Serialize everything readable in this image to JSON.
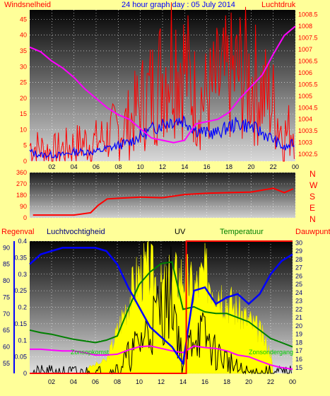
{
  "colors": {
    "background": "#ffff99",
    "wind": "#ff0000",
    "gust": "#ff0000",
    "wind_avg": "#0000ff",
    "pressure": "#ff00ff",
    "direction": "#ff0000",
    "humidity": "#0000ff",
    "temperature": "#008000",
    "uv": "#000000",
    "solar": "#ffff00",
    "rain": "#ff0000",
    "dewpoint": "#ff00ff",
    "title": "#0000ff"
  },
  "chart_data": [
    {
      "type": "line",
      "title": "24 hour graph day : 05 July 2014",
      "left_label": "Windsnelheid",
      "right_label": "Luchtdruk",
      "x_ticks": [
        "02",
        "04",
        "06",
        "08",
        "10",
        "12",
        "14",
        "16",
        "18",
        "20",
        "22",
        "00"
      ],
      "y_left_ticks": [
        "45",
        "40",
        "35",
        "30",
        "25",
        "20",
        "15",
        "10",
        "5",
        "0"
      ],
      "y_right_ticks": [
        "1008.5",
        "1008",
        "1007.5",
        "1007",
        "1006.5",
        "1006",
        "1005.5",
        "1005",
        "1004.5",
        "1004",
        "1003.5",
        "1003",
        "1002.5"
      ],
      "ylim_left": [
        0,
        48
      ],
      "ylim_right": [
        1002.2,
        1008.7
      ],
      "x_hours": [
        0,
        1,
        2,
        3,
        4,
        5,
        6,
        7,
        8,
        9,
        10,
        11,
        12,
        13,
        14,
        15,
        16,
        17,
        18,
        19,
        20,
        21,
        22,
        23,
        24
      ],
      "series": [
        {
          "key": "gust",
          "values": [
            5,
            4,
            3,
            4,
            5,
            6,
            6,
            8,
            10,
            12,
            18,
            22,
            28,
            36,
            30,
            20,
            20,
            24,
            26,
            28,
            26,
            22,
            18,
            8,
            12
          ]
        },
        {
          "key": "wind_avg",
          "values": [
            3,
            2,
            2,
            2,
            3,
            3,
            3,
            4,
            5,
            6,
            8,
            10,
            12,
            13,
            13,
            10,
            9,
            9,
            11,
            12,
            11,
            9,
            7,
            4,
            6
          ]
        },
        {
          "key": "pressure",
          "values": [
            1007.1,
            1006.9,
            1006.5,
            1006.2,
            1005.8,
            1005.3,
            1004.9,
            1004.5,
            1004.2,
            1004.0,
            1003.6,
            1003.2,
            1003.1,
            1003.0,
            1003.1,
            1003.8,
            1003.9,
            1004.0,
            1004.3,
            1004.9,
            1005.4,
            1005.9,
            1006.8,
            1007.6,
            1008.0
          ]
        }
      ]
    },
    {
      "type": "line",
      "y_ticks": [
        "360",
        "270",
        "180",
        "90",
        "0"
      ],
      "right_labels": [
        "N",
        "W",
        "S",
        "E",
        "N"
      ],
      "ylim": [
        0,
        360
      ],
      "series": [
        {
          "key": "direction",
          "x": [
            0.3,
            2,
            4,
            5.5,
            6.2,
            7,
            8,
            10,
            12,
            14,
            16,
            18,
            20,
            22,
            23,
            23.8
          ],
          "values": [
            22,
            22,
            22,
            40,
            100,
            150,
            155,
            165,
            160,
            185,
            195,
            200,
            205,
            235,
            200,
            230
          ]
        }
      ]
    },
    {
      "type": "line",
      "labels": {
        "rain": "Regenval",
        "humidity": "Luchtvochtigheid",
        "uv": "UV",
        "temperature": "Temperatuur",
        "dewpoint": "Dauwpunt",
        "sunrise": "Zonsopkomst",
        "sunset": "Zonsondergang"
      },
      "y_rain_ticks": [
        "0.4",
        "0.35",
        "0.3",
        "0.25",
        "0.2",
        "0.15",
        "0.1",
        "0.05",
        "0"
      ],
      "y_humidity_ticks": [
        "90",
        "85",
        "80",
        "75",
        "70",
        "65",
        "60",
        "55"
      ],
      "y_temp_ticks": [
        "30",
        "29",
        "28",
        "27",
        "26",
        "25",
        "24",
        "23",
        "22",
        "21",
        "20",
        "19",
        "18",
        "17",
        "16",
        "15"
      ],
      "x_ticks": [
        "02",
        "04",
        "06",
        "08",
        "10",
        "12",
        "14",
        "16",
        "18",
        "20",
        "22",
        "00"
      ],
      "x_hours": [
        0,
        1,
        2,
        3,
        4,
        5,
        6,
        7,
        8,
        9,
        10,
        11,
        12,
        13,
        14,
        15,
        16,
        17,
        18,
        19,
        20,
        21,
        22,
        23,
        24
      ],
      "series": [
        {
          "key": "humidity",
          "values": [
            85,
            88,
            89,
            90,
            90,
            90,
            90,
            89,
            85,
            78,
            72,
            66,
            63,
            60,
            55,
            77,
            78,
            73,
            75,
            76,
            73,
            76,
            82,
            86,
            88
          ]
        },
        {
          "key": "temperature",
          "values": [
            19.5,
            19.2,
            19.0,
            18.7,
            18.4,
            18.2,
            18.0,
            18.3,
            18.8,
            22,
            25,
            26.5,
            27.5,
            27.7,
            22,
            22.3,
            21.7,
            21.5,
            21.5,
            21,
            20.5,
            19.5,
            18.5,
            18,
            17.5
          ]
        },
        {
          "key": "dewpoint",
          "values": [
            17.2,
            17.2,
            17.1,
            17.0,
            17.0,
            16.8,
            16.5,
            16.5,
            16.6,
            17.1,
            17.5,
            17.6,
            17.3,
            17.0,
            16.8,
            17.6,
            17.4,
            17.3,
            17.0,
            16.5,
            16.3,
            15.8,
            15.3,
            15.0,
            14.8
          ]
        },
        {
          "key": "uv",
          "values": [
            0,
            0,
            0,
            0,
            0,
            0,
            0,
            0,
            0.01,
            0.05,
            0.09,
            0.14,
            0.2,
            0.25,
            0.02,
            0.13,
            0.11,
            0.06,
            0.04,
            0.01,
            0,
            0,
            0,
            0,
            0
          ]
        },
        {
          "key": "rain",
          "x": [
            0,
            14.3,
            14.3,
            15,
            24
          ],
          "values": [
            0,
            0,
            0.4,
            0.4,
            0.4
          ]
        },
        {
          "key": "solar",
          "x": [
            5.2,
            7,
            8,
            9,
            10,
            11,
            12,
            13,
            14,
            15,
            16,
            17,
            18,
            19,
            20,
            21,
            22,
            22.2
          ],
          "values": [
            5,
            12,
            40,
            70,
            95,
            98,
            80,
            90,
            95,
            80,
            95,
            85,
            70,
            60,
            50,
            40,
            20,
            5
          ]
        }
      ],
      "sunrise_hour": 5.2,
      "sunset_hour": 22.2
    }
  ]
}
